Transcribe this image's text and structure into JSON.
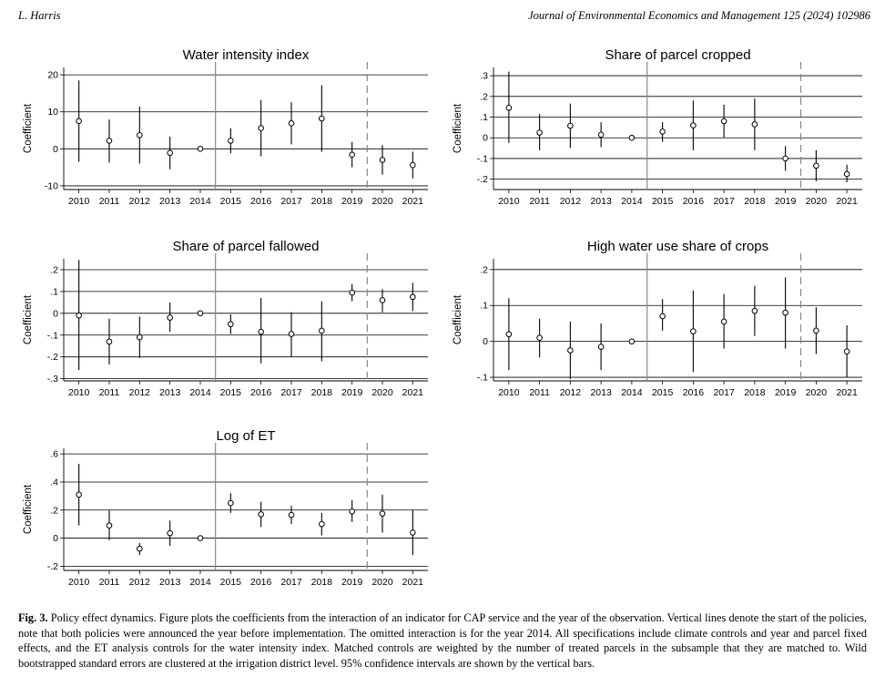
{
  "header": {
    "author": "L. Harris",
    "journal": "Journal of Environmental Economics and Management 125 (2024) 102986"
  },
  "chart_data": [
    {
      "type": "scatter",
      "title": "Water intensity index",
      "ylabel": "Coefficient",
      "categories": [
        "2010",
        "2011",
        "2012",
        "2013",
        "2014",
        "2015",
        "2016",
        "2017",
        "2018",
        "2019",
        "2020",
        "2021"
      ],
      "yticks": [
        {
          "v": 20,
          "label": "20"
        },
        {
          "v": 10,
          "label": "10"
        },
        {
          "v": 0,
          "label": "0"
        },
        {
          "v": -10,
          "label": "-10"
        }
      ],
      "ylim": [
        -11,
        22
      ],
      "coef": [
        7.5,
        2.2,
        3.7,
        -1.1,
        0,
        2.2,
        5.6,
        6.9,
        8.2,
        -1.6,
        -3.0,
        -4.4
      ],
      "lower": [
        -3.5,
        -3.7,
        -4.0,
        -5.5,
        0,
        -1.2,
        -2.0,
        1.2,
        -0.8,
        -5.0,
        -7.0,
        -8.0
      ],
      "upper": [
        18.5,
        7.9,
        11.4,
        3.3,
        0,
        5.6,
        13.2,
        12.6,
        17.2,
        1.9,
        1.0,
        -0.8
      ],
      "policy_start": "2014.5",
      "announce": "2019.5"
    },
    {
      "type": "scatter",
      "title": "Share of parcel cropped",
      "ylabel": "Coefficient",
      "categories": [
        "2010",
        "2011",
        "2012",
        "2013",
        "2014",
        "2015",
        "2016",
        "2017",
        "2018",
        "2019",
        "2020",
        "2021"
      ],
      "yticks": [
        {
          "v": 0.3,
          "label": ".3"
        },
        {
          "v": 0.2,
          "label": ".2"
        },
        {
          "v": 0.1,
          "label": ".1"
        },
        {
          "v": 0,
          "label": "0"
        },
        {
          "v": -0.1,
          "label": "-.1"
        },
        {
          "v": -0.2,
          "label": "-.2"
        }
      ],
      "ylim": [
        -0.25,
        0.34
      ],
      "coef": [
        0.145,
        0.025,
        0.058,
        0.015,
        0,
        0.03,
        0.06,
        0.08,
        0.065,
        -0.1,
        -0.135,
        -0.175
      ],
      "lower": [
        -0.025,
        -0.06,
        -0.05,
        -0.045,
        0,
        -0.02,
        -0.06,
        0.0,
        -0.06,
        -0.16,
        -0.21,
        -0.215
      ],
      "upper": [
        0.32,
        0.115,
        0.165,
        0.075,
        0,
        0.075,
        0.18,
        0.16,
        0.19,
        -0.04,
        -0.06,
        -0.13
      ],
      "policy_start": "2014.5",
      "announce": "2019.5"
    },
    {
      "type": "scatter",
      "title": "Share of parcel fallowed",
      "ylabel": "Coefficient",
      "categories": [
        "2010",
        "2011",
        "2012",
        "2013",
        "2014",
        "2015",
        "2016",
        "2017",
        "2018",
        "2019",
        "2020",
        "2021"
      ],
      "yticks": [
        {
          "v": 0.2,
          "label": ".2"
        },
        {
          "v": 0.1,
          "label": ".1"
        },
        {
          "v": 0,
          "label": "0"
        },
        {
          "v": -0.1,
          "label": "-.1"
        },
        {
          "v": -0.2,
          "label": "-.2"
        },
        {
          "v": -0.3,
          "label": "-.3"
        }
      ],
      "ylim": [
        -0.31,
        0.25
      ],
      "coef": [
        -0.01,
        -0.13,
        -0.11,
        -0.02,
        0,
        -0.05,
        -0.085,
        -0.095,
        -0.08,
        0.095,
        0.06,
        0.075
      ],
      "lower": [
        -0.26,
        -0.235,
        -0.205,
        -0.085,
        0,
        -0.095,
        -0.23,
        -0.2,
        -0.22,
        0.055,
        0.005,
        0.01
      ],
      "upper": [
        0.245,
        -0.025,
        -0.015,
        0.05,
        0,
        -0.005,
        0.07,
        0.005,
        0.055,
        0.135,
        0.11,
        0.14
      ],
      "policy_start": "2014.5",
      "announce": "2019.5"
    },
    {
      "type": "scatter",
      "title": "High water use share of crops",
      "ylabel": "Coefficient",
      "categories": [
        "2010",
        "2011",
        "2012",
        "2013",
        "2014",
        "2015",
        "2016",
        "2017",
        "2018",
        "2019",
        "2020",
        "2021"
      ],
      "yticks": [
        {
          "v": 0.2,
          "label": ".2"
        },
        {
          "v": 0.1,
          "label": ".1"
        },
        {
          "v": 0,
          "label": "0"
        },
        {
          "v": -0.1,
          "label": "-.1"
        }
      ],
      "ylim": [
        -0.11,
        0.23
      ],
      "coef": [
        0.02,
        0.01,
        -0.025,
        -0.015,
        0,
        0.07,
        0.028,
        0.055,
        0.085,
        0.08,
        0.03,
        -0.028
      ],
      "lower": [
        -0.08,
        -0.045,
        -0.105,
        -0.08,
        0,
        0.03,
        -0.085,
        -0.02,
        0.015,
        -0.02,
        -0.035,
        -0.1
      ],
      "upper": [
        0.12,
        0.063,
        0.055,
        0.05,
        0,
        0.118,
        0.142,
        0.132,
        0.155,
        0.178,
        0.095,
        0.045
      ],
      "policy_start": "2014.5",
      "announce": "2019.5"
    },
    {
      "type": "scatter",
      "title": "Log of ET",
      "ylabel": "Coefficient",
      "categories": [
        "2010",
        "2011",
        "2012",
        "2013",
        "2014",
        "2015",
        "2016",
        "2017",
        "2018",
        "2019",
        "2020",
        "2021"
      ],
      "yticks": [
        {
          "v": 0.6,
          "label": ".6"
        },
        {
          "v": 0.4,
          "label": ".4"
        },
        {
          "v": 0.2,
          "label": ".2"
        },
        {
          "v": 0,
          "label": "0"
        },
        {
          "v": -0.2,
          "label": "-.2"
        }
      ],
      "ylim": [
        -0.23,
        0.64
      ],
      "coef": [
        0.31,
        0.09,
        -0.075,
        0.035,
        0,
        0.25,
        0.17,
        0.165,
        0.1,
        0.19,
        0.175,
        0.04
      ],
      "lower": [
        0.09,
        -0.015,
        -0.12,
        -0.055,
        0,
        0.18,
        0.08,
        0.1,
        0.02,
        0.115,
        0.04,
        -0.12
      ],
      "upper": [
        0.53,
        0.2,
        -0.035,
        0.125,
        0,
        0.32,
        0.26,
        0.23,
        0.18,
        0.27,
        0.31,
        0.2
      ],
      "policy_start": "2014.5",
      "announce": "2019.5"
    }
  ],
  "caption": {
    "label": "Fig. 3.",
    "text": "Policy effect dynamics. Figure plots the coefficients from the interaction of an indicator for CAP service and the year of the observation. Vertical lines denote the start of the policies, note that both policies were announced the year before implementation. The omitted interaction is for the year 2014. All specifications include climate controls and year and parcel fixed effects, and the ET analysis controls for the water intensity index. Matched controls are weighted by the number of treated parcels in the subsample that they are matched to. Wild bootstrapped standard errors are clustered at the irrigation district level. 95% confidence intervals are shown by the vertical bars."
  }
}
